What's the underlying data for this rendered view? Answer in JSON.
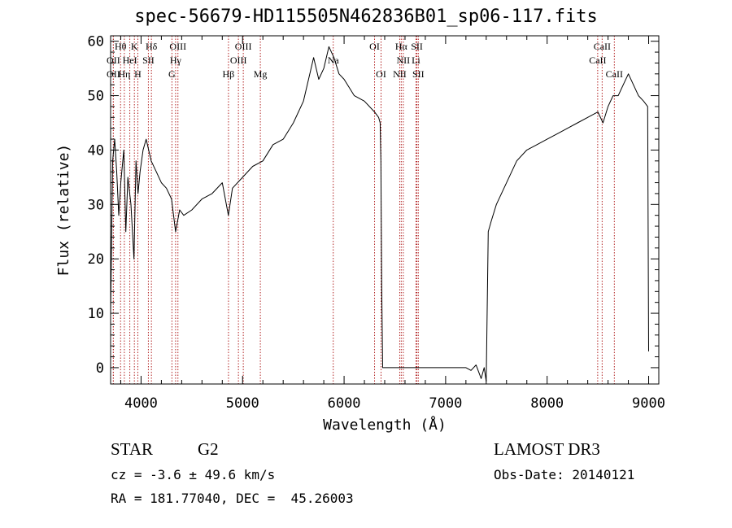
{
  "header": {
    "title": "spec-56679-HD115505N462836B01_sp06-117.fits"
  },
  "info": {
    "class_label": "STAR",
    "subclass_label": "G2",
    "survey": "LAMOST DR3",
    "cz_text": "cz = -3.6 ± 49.6 km/s",
    "obs_date": "Obs-Date: 20140121",
    "coords": "RA = 181.77040, DEC =  45.26003"
  },
  "chart_data": {
    "type": "line",
    "title": "spec-56679-HD115505N462836B01_sp06-117.fits",
    "xlabel": "Wavelength (Å)",
    "ylabel": "Flux (relative)",
    "xlim": [
      3700,
      9100
    ],
    "ylim": [
      -3,
      61
    ],
    "x_ticks": [
      4000,
      5000,
      6000,
      7000,
      8000,
      9000
    ],
    "y_ticks": [
      0,
      10,
      20,
      30,
      40,
      50,
      60
    ],
    "grid": false,
    "line_color": "#000000",
    "marker_color": "#b22222",
    "series": [
      {
        "x": [
          3700,
          3720,
          3740,
          3760,
          3780,
          3800,
          3830,
          3850,
          3870,
          3900,
          3930,
          3950,
          3970,
          3990,
          4020,
          4050,
          4100,
          4150,
          4200,
          4250,
          4300,
          4340,
          4380,
          4420,
          4500,
          4600,
          4700,
          4800,
          4860,
          4900,
          5000,
          5100,
          5200,
          5300,
          5400,
          5500,
          5600,
          5700,
          5750,
          5800,
          5850,
          5900,
          5950,
          6000,
          6100,
          6200,
          6300,
          6340,
          6355,
          6362,
          6370,
          6380,
          6700,
          7000,
          7200,
          7250,
          7300,
          7350,
          7380,
          7400,
          7420,
          7450,
          7500,
          7600,
          7700,
          7800,
          7900,
          8000,
          8100,
          8200,
          8300,
          8400,
          8500,
          8550,
          8600,
          8650,
          8700,
          8750,
          8800,
          8850,
          8900,
          8950,
          8990,
          9000
        ],
        "y": [
          10,
          38,
          42,
          36,
          28,
          34,
          40,
          25,
          35,
          30,
          20,
          38,
          32,
          36,
          40,
          42,
          38,
          36,
          34,
          33,
          31,
          25,
          29,
          28,
          29,
          31,
          32,
          34,
          28,
          33,
          35,
          37,
          38,
          41,
          42,
          45,
          49,
          57,
          53,
          55,
          59,
          57,
          54,
          53,
          50,
          49,
          47,
          46,
          45,
          38,
          15,
          0,
          0,
          0,
          0,
          -0.5,
          0.5,
          -2,
          0,
          -2.5,
          25,
          27,
          30,
          34,
          38,
          40,
          41,
          42,
          43,
          44,
          45,
          46,
          47,
          45,
          48,
          50,
          50,
          52,
          54,
          52,
          50,
          49,
          48,
          3
        ]
      }
    ],
    "spectral_lines": [
      {
        "label": "Hθ",
        "row": 1,
        "wl": 3798
      },
      {
        "label": "K",
        "row": 1,
        "wl": 3934
      },
      {
        "label": "Hδ",
        "row": 1,
        "wl": 4102
      },
      {
        "label": "OIII",
        "row": 1,
        "wl": 4363
      },
      {
        "label": "OIII",
        "row": 1,
        "wl": 5007
      },
      {
        "label": "OI",
        "row": 1,
        "wl": 6300
      },
      {
        "label": "Hα",
        "row": 1,
        "wl": 6563
      },
      {
        "label": "SII",
        "row": 1,
        "wl": 6717
      },
      {
        "label": "CaII",
        "row": 1,
        "wl": 8542
      },
      {
        "label": "OII",
        "row": 2,
        "wl": 3727
      },
      {
        "label": "HeI",
        "row": 2,
        "wl": 3889
      },
      {
        "label": "SII",
        "row": 2,
        "wl": 4072
      },
      {
        "label": "Hγ",
        "row": 2,
        "wl": 4340
      },
      {
        "label": "OIII",
        "row": 2,
        "wl": 4959
      },
      {
        "label": "Na",
        "row": 2,
        "wl": 5893
      },
      {
        "label": "NII",
        "row": 2,
        "wl": 6583
      },
      {
        "label": "Li",
        "row": 2,
        "wl": 6708
      },
      {
        "label": "CaII",
        "row": 2,
        "wl": 8498
      },
      {
        "label": "OII",
        "row": 3,
        "wl": 3727
      },
      {
        "label": "Hη",
        "row": 3,
        "wl": 3835
      },
      {
        "label": "H",
        "row": 3,
        "wl": 3968
      },
      {
        "label": "G",
        "row": 3,
        "wl": 4304
      },
      {
        "label": "Hβ",
        "row": 3,
        "wl": 4861
      },
      {
        "label": "Mg",
        "row": 3,
        "wl": 5175
      },
      {
        "label": "OI",
        "row": 3,
        "wl": 6364
      },
      {
        "label": "NII",
        "row": 3,
        "wl": 6548
      },
      {
        "label": "SII",
        "row": 3,
        "wl": 6731
      },
      {
        "label": "CaII",
        "row": 3,
        "wl": 8662
      }
    ]
  }
}
